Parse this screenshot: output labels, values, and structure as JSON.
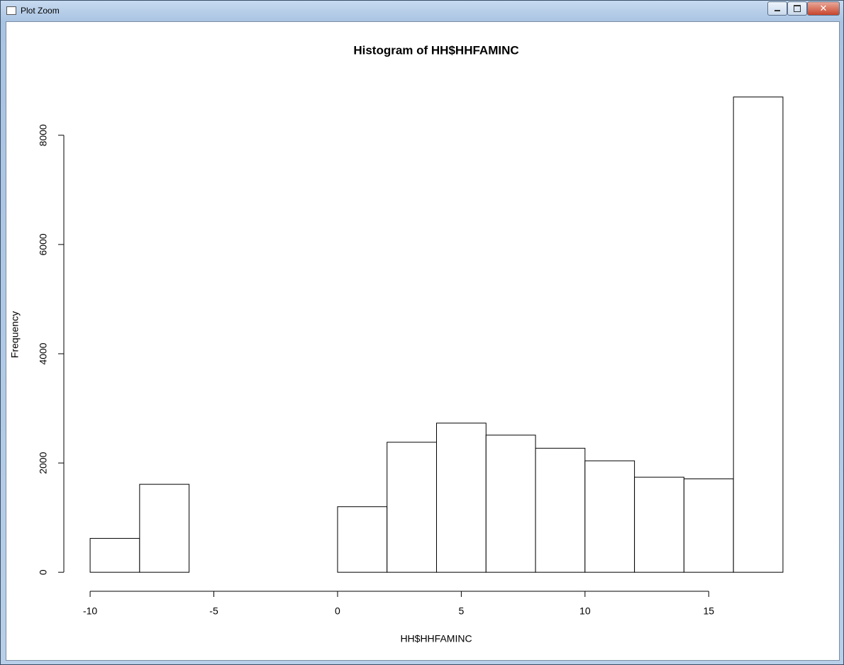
{
  "window": {
    "title": "Plot Zoom"
  },
  "chart_data": {
    "type": "histogram",
    "title": "Histogram of HH$HHFAMINC",
    "x_label": "HH$HHFAMINC",
    "y_label": "Frequency",
    "bins": [
      -10,
      -8,
      -6,
      -4,
      -2,
      0,
      2,
      4,
      6,
      8,
      10,
      12,
      14,
      16,
      18
    ],
    "values": [
      620,
      1610,
      0,
      0,
      0,
      1200,
      2380,
      2730,
      2510,
      2270,
      2040,
      1740,
      1710,
      8700
    ],
    "color": "#ffffff",
    "xlim": [
      -11.12,
      19.12
    ],
    "xticks": [
      -10,
      -5,
      0,
      5,
      10,
      15
    ],
    "ylim": [
      -348,
      9048
    ],
    "yticks": [
      0,
      2000,
      4000,
      6000,
      8000
    ],
    "grid": false
  }
}
